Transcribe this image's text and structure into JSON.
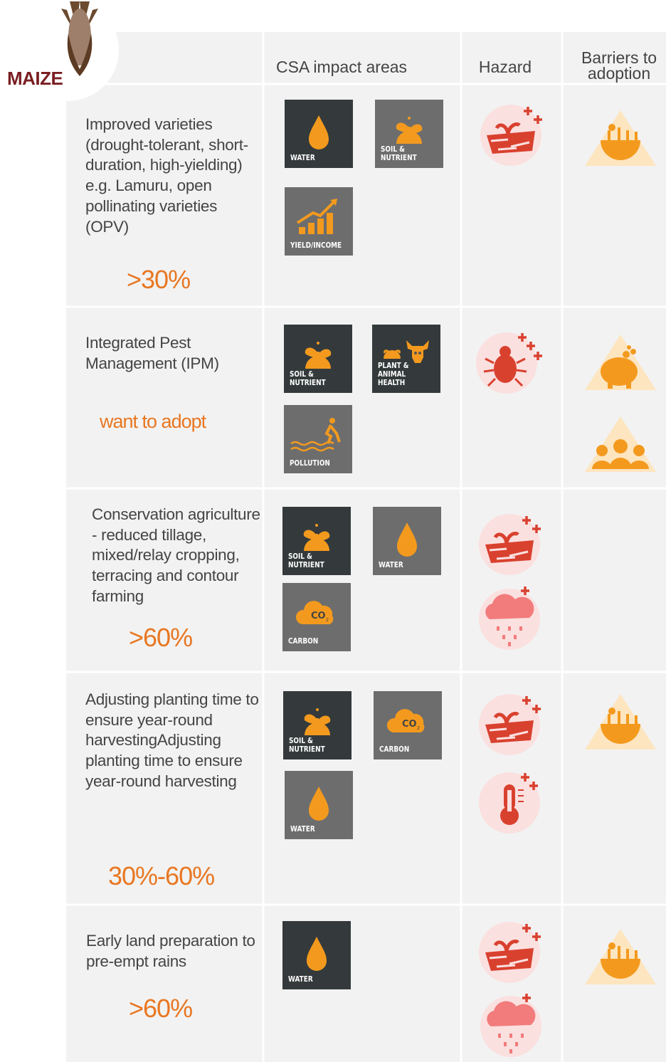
{
  "header": {
    "crop": "MAIZE",
    "columns": [
      "CSA impact areas",
      "Hazard",
      "Barriers to adoption"
    ]
  },
  "rows": [
    {
      "practice": "Improved varieties (drought-tolerant, short-duration, high-yielding) e.g. Lamuru, open pollinating varieties (OPV)",
      "adoption": ">30%",
      "impacts": [
        "WATER",
        "SOIL & NUTRIENT",
        "YIELD/INCOME"
      ]
    },
    {
      "practice": "Integrated Pest Management (IPM)",
      "adoption": "want to adopt",
      "impacts": [
        "SOIL & NUTRIENT",
        "PLANT & ANIMAL HEALTH",
        "POLLUTION"
      ]
    },
    {
      "practice": "Conservation agriculture - reduced tillage, mixed/relay cropping, terracing and contour farming",
      "adoption": ">60%",
      "impacts": [
        "SOIL & NUTRIENT",
        "WATER",
        "CARBON"
      ]
    },
    {
      "practice": "Adjusting planting time to ensure year-round harvestingAdjusting planting time to ensure year-round harvesting",
      "adoption": "30%-60%",
      "impacts": [
        "SOIL & NUTRIENT",
        "CARBON",
        "WATER"
      ]
    },
    {
      "practice": "Early land preparation to pre-empt rains",
      "adoption": ">60%",
      "impacts": [
        "WATER"
      ]
    }
  ]
}
